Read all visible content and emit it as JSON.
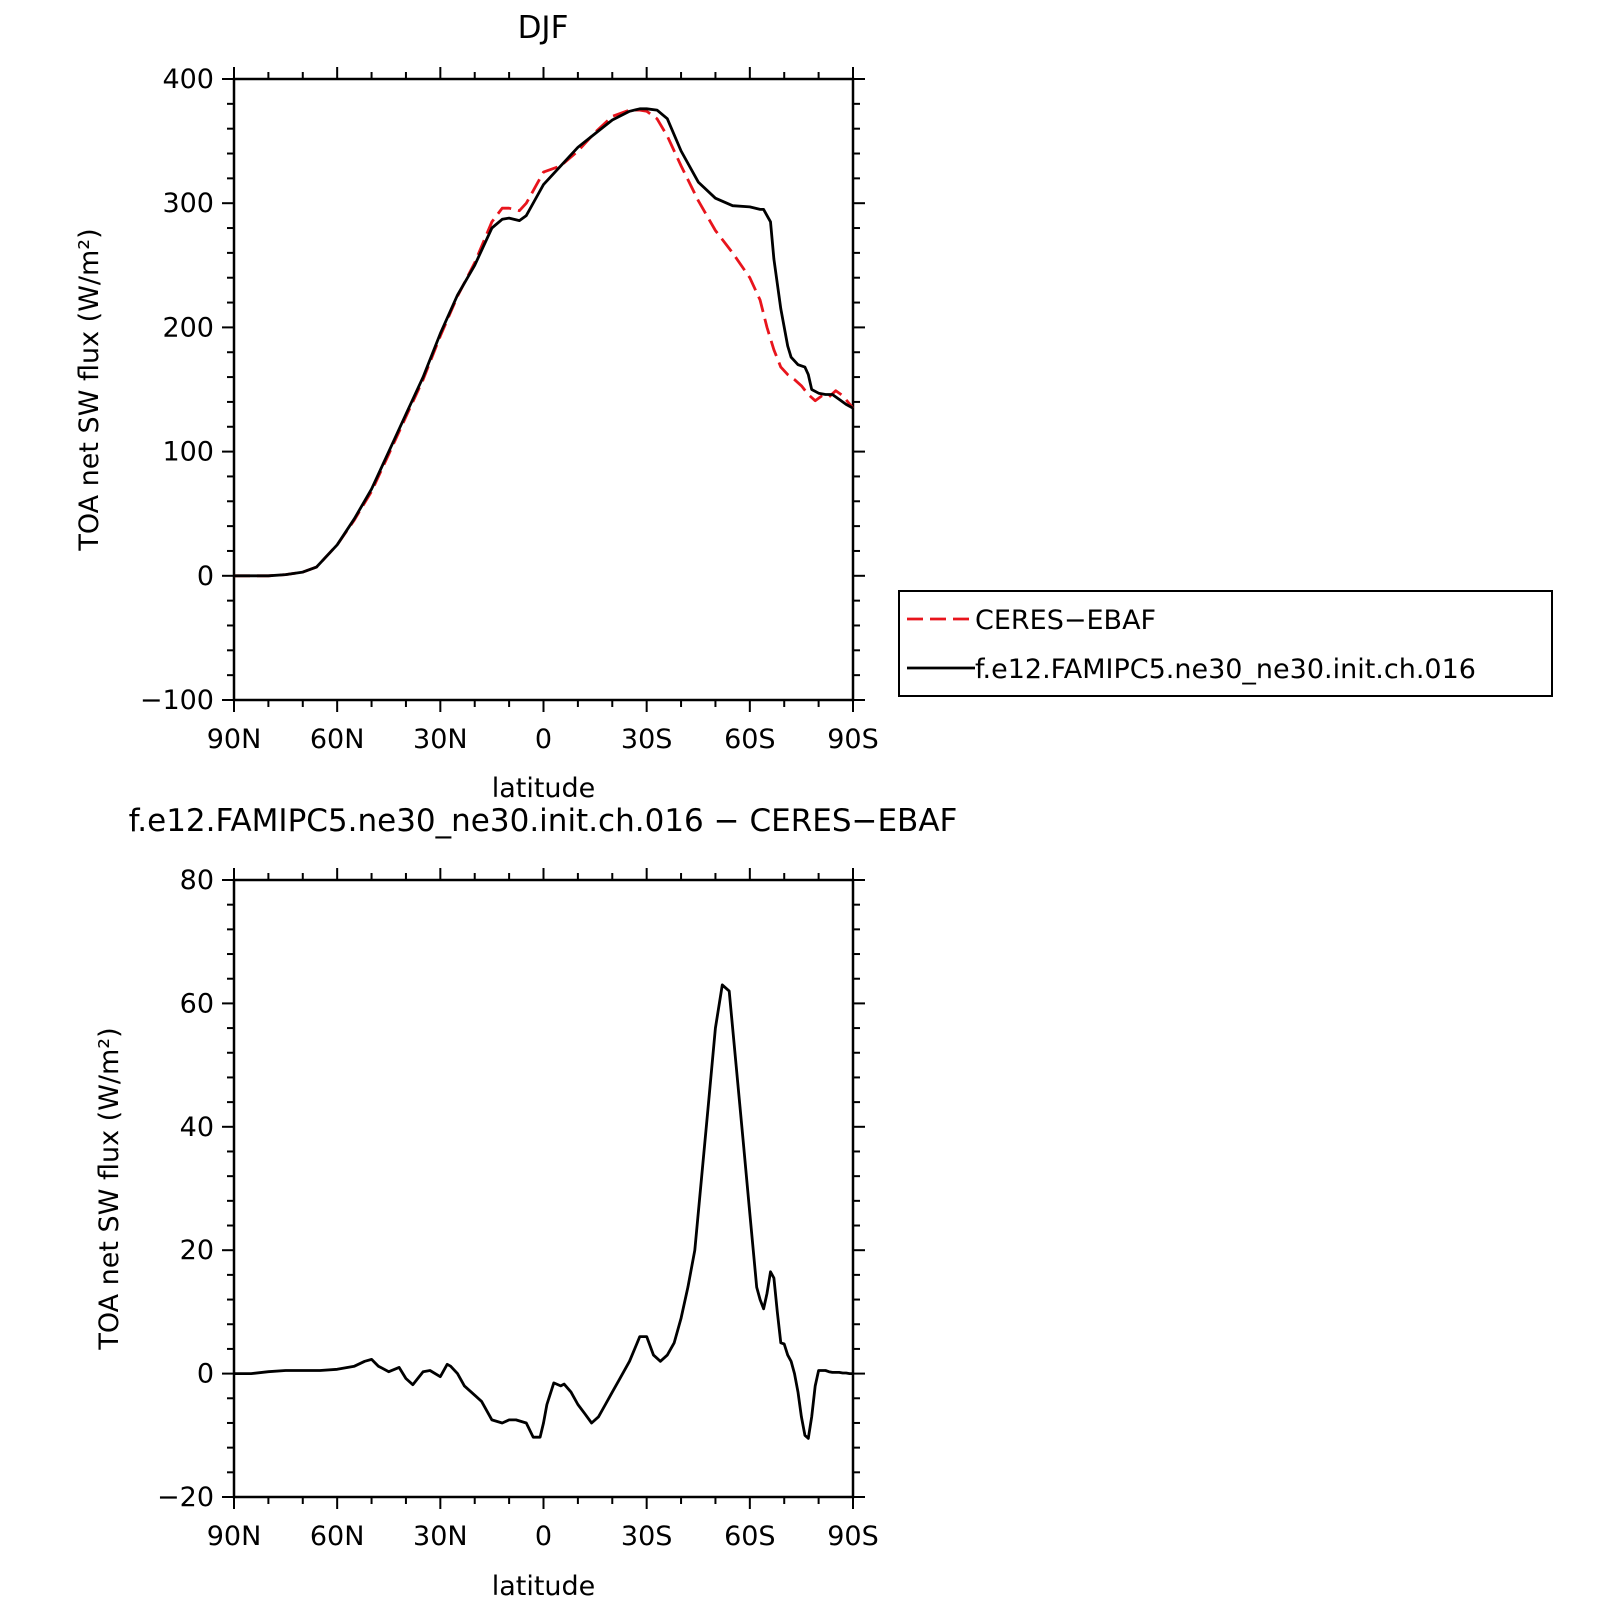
{
  "chart_data": [
    {
      "type": "line",
      "title": "DJF",
      "xlabel": "latitude",
      "ylabel": "TOA net SW flux (W/m²)",
      "xlim": [
        90,
        -90
      ],
      "ylim": [
        -100,
        400
      ],
      "xticks": [
        90,
        60,
        30,
        0,
        -30,
        -60,
        -90
      ],
      "xtick_labels": [
        "90N",
        "60N",
        "30N",
        "0",
        "30S",
        "60S",
        "90S"
      ],
      "yticks": [
        -100,
        0,
        100,
        200,
        300,
        400
      ],
      "ytick_labels": [
        "−100",
        "0",
        "100",
        "200",
        "300",
        "400"
      ],
      "legend": "right",
      "series": [
        {
          "name": "CERES−EBAF",
          "color": "#e8141c",
          "dash": "dashed",
          "x": [
            90,
            85,
            80,
            75,
            70,
            66,
            60,
            55,
            50,
            45,
            40,
            35,
            30,
            25,
            20,
            15,
            12,
            10,
            7,
            5,
            2,
            0,
            -5,
            -10,
            -15,
            -20,
            -25,
            -28,
            -30,
            -33,
            -36,
            -40,
            -45,
            -50,
            -55,
            -60,
            -63,
            -65,
            -67,
            -69,
            -71,
            -73,
            -75,
            -77,
            -79,
            -81,
            -83,
            -85,
            -87,
            -90
          ],
          "values": [
            0,
            0,
            0,
            1,
            3,
            7,
            25,
            45,
            68,
            98,
            128,
            158,
            193,
            225,
            252,
            285,
            296,
            296,
            294,
            300,
            315,
            325,
            330,
            342,
            357,
            370,
            375,
            375,
            374,
            368,
            354,
            330,
            302,
            278,
            260,
            240,
            222,
            200,
            182,
            168,
            162,
            158,
            153,
            146,
            141,
            145,
            144,
            149,
            145,
            135
          ]
        },
        {
          "name": "f.e12.FAMIPC5.ne30_ne30.init.ch.016",
          "color": "#000000",
          "dash": "solid",
          "x": [
            90,
            85,
            80,
            75,
            70,
            66,
            60,
            55,
            50,
            45,
            40,
            35,
            30,
            25,
            20,
            15,
            12,
            10,
            7,
            5,
            2,
            0,
            -5,
            -10,
            -15,
            -20,
            -25,
            -28,
            -30,
            -33,
            -36,
            -40,
            -45,
            -50,
            -55,
            -60,
            -63,
            -64,
            -66,
            -67,
            -69,
            -71,
            -72,
            -74,
            -76,
            -77,
            -78,
            -80,
            -82,
            -84,
            -86,
            -88,
            -90
          ],
          "values": [
            0,
            0,
            0,
            1,
            3,
            7,
            25,
            46,
            70,
            100,
            130,
            160,
            195,
            226,
            250,
            280,
            287,
            288,
            286,
            290,
            305,
            315,
            330,
            345,
            356,
            367,
            374,
            376,
            376,
            375,
            368,
            342,
            317,
            304,
            298,
            297,
            295,
            295,
            285,
            255,
            215,
            185,
            176,
            170,
            168,
            162,
            150,
            147,
            146,
            146,
            142,
            138,
            135
          ]
        }
      ]
    },
    {
      "type": "line",
      "title": "f.e12.FAMIPC5.ne30_ne30.init.ch.016 − CERES−EBAF",
      "xlabel": "latitude",
      "ylabel": "TOA net SW flux (W/m²)",
      "xlim": [
        90,
        -90
      ],
      "ylim": [
        -20,
        80
      ],
      "xticks": [
        90,
        60,
        30,
        0,
        -30,
        -60,
        -90
      ],
      "xtick_labels": [
        "90N",
        "60N",
        "30N",
        "0",
        "30S",
        "60S",
        "90S"
      ],
      "yticks": [
        -20,
        0,
        20,
        40,
        60,
        80
      ],
      "ytick_labels": [
        "−20",
        "0",
        "20",
        "40",
        "60",
        "80"
      ],
      "series": [
        {
          "color": "#000000",
          "dash": "solid",
          "x": [
            90,
            85,
            80,
            75,
            70,
            65,
            60,
            55,
            52,
            50,
            48,
            45,
            42,
            40,
            38,
            35,
            33,
            30,
            28,
            27,
            25,
            23,
            20,
            18,
            15,
            12,
            10,
            8,
            5,
            3,
            1,
            0,
            -1,
            -3,
            -5,
            -6,
            -8,
            -10,
            -12,
            -14,
            -16,
            -18,
            -20,
            -22,
            -25,
            -28,
            -30,
            -32,
            -34,
            -36,
            -38,
            -40,
            -42,
            -44,
            -46,
            -48,
            -50,
            -52,
            -54,
            -56,
            -58,
            -60,
            -62,
            -63,
            -64,
            -65,
            -66,
            -67,
            -68,
            -69,
            -70,
            -71,
            -72,
            -73,
            -74,
            -75,
            -76,
            -77,
            -78,
            -79,
            -80,
            -81,
            -82,
            -83,
            -84,
            -85,
            -86,
            -87,
            -88,
            -89,
            -90
          ],
          "values": [
            0,
            0,
            0.3,
            0.5,
            0.5,
            0.5,
            0.7,
            1.2,
            2.0,
            2.3,
            1.2,
            0.3,
            1.0,
            -0.8,
            -1.8,
            0.3,
            0.5,
            -0.5,
            1.5,
            1.2,
            0,
            -2.0,
            -3.5,
            -4.5,
            -7.5,
            -8.0,
            -7.5,
            -7.5,
            -8.0,
            -10.3,
            -10.3,
            -8.0,
            -5.0,
            -1.5,
            -2.0,
            -1.7,
            -3.0,
            -5.0,
            -6.5,
            -8.0,
            -7.0,
            -5.0,
            -3.0,
            -1.0,
            2.0,
            6.0,
            6.0,
            3.0,
            2.0,
            3.0,
            5.0,
            9.0,
            14.0,
            20.0,
            32.0,
            44.0,
            56.0,
            63.0,
            62.0,
            50.0,
            38.0,
            26.0,
            14.0,
            12.0,
            10.5,
            13.0,
            16.5,
            15.5,
            10.0,
            5.0,
            4.8,
            3.0,
            2.0,
            0.0,
            -3.0,
            -7.0,
            -10.0,
            -10.5,
            -7.0,
            -2.0,
            0.5,
            0.5,
            0.5,
            0.3,
            0.2,
            0.2,
            0.2,
            0.1,
            0.1,
            0,
            0
          ]
        }
      ]
    }
  ]
}
